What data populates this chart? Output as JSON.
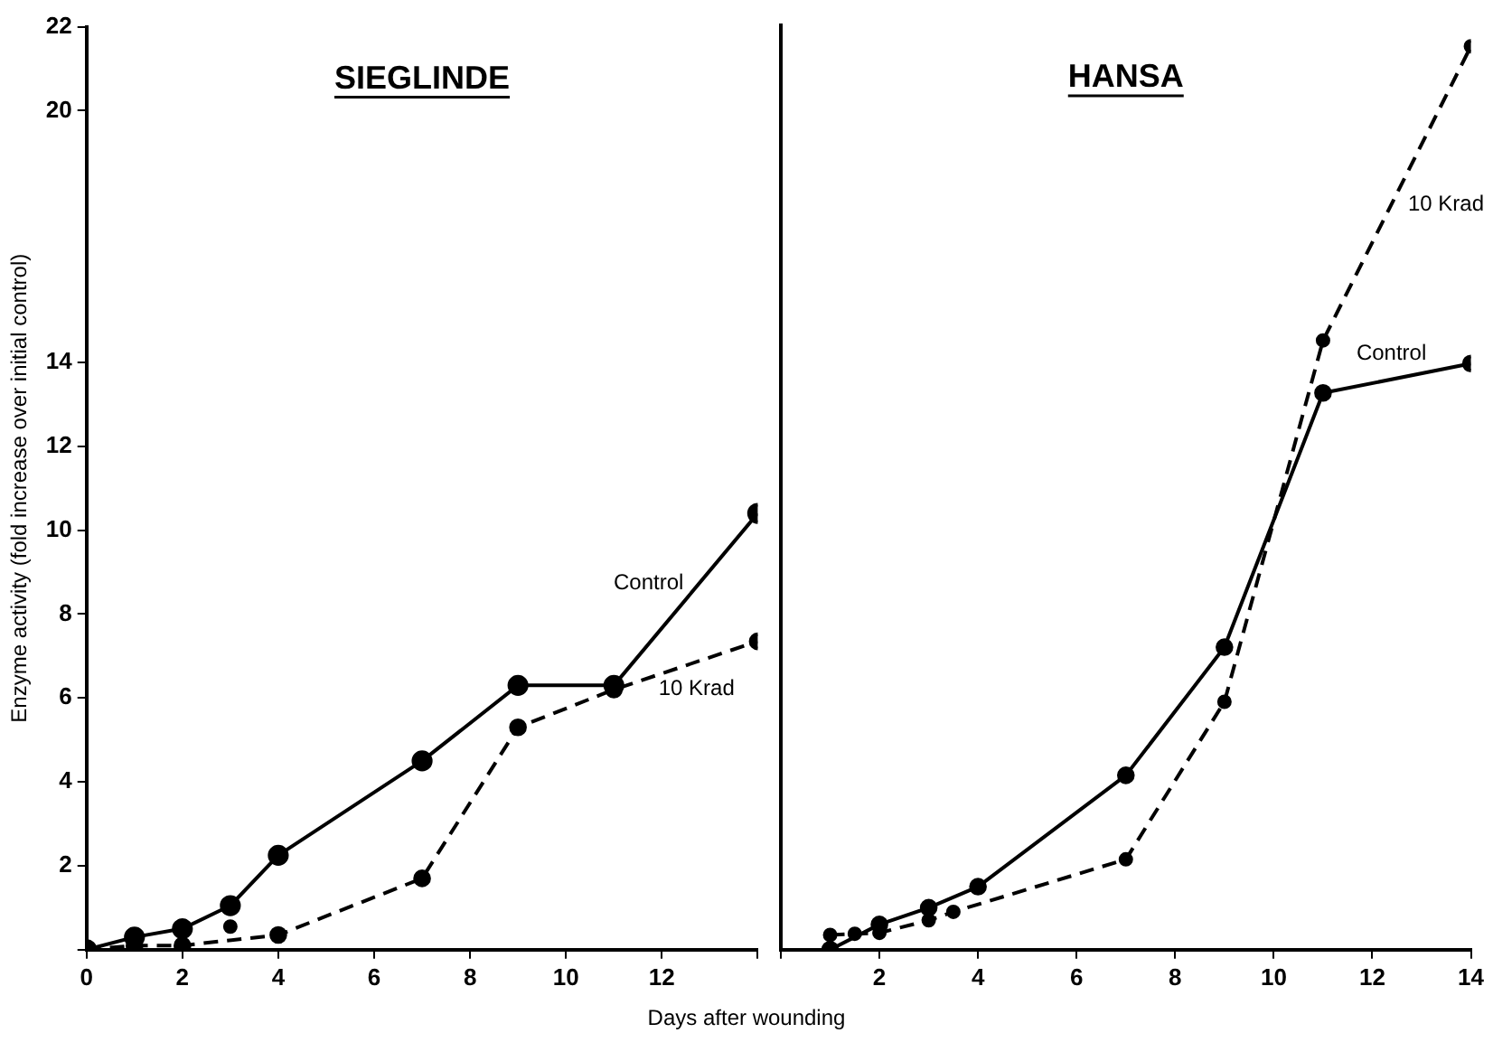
{
  "chart_data": [
    {
      "type": "line",
      "title": "SIEGLINDE",
      "xlabel": "Days after wounding",
      "ylabel": "Enzyme activity (fold increase over initial control)",
      "xlim": [
        0,
        14
      ],
      "xticks": [
        0,
        2,
        4,
        6,
        8,
        10,
        12,
        {
          "value": 14,
          "label": null
        }
      ],
      "ylim": [
        0,
        22
      ],
      "yticks": [
        {
          "value": 0,
          "label": null
        },
        2,
        4,
        6,
        8,
        10,
        12,
        14,
        20,
        22
      ],
      "grid": false,
      "legend": false,
      "marker": "circle",
      "series": [
        {
          "name": "Control",
          "color": "#000000",
          "line_style": "solid",
          "x": [
            0,
            1,
            2,
            3,
            4,
            7,
            9,
            11,
            14
          ],
          "values": [
            0,
            0.3,
            0.5,
            1.05,
            2.25,
            4.5,
            6.3,
            6.3,
            10.4
          ]
        },
        {
          "name": "10 Krad",
          "color": "#000000",
          "line_style": "dashed",
          "x": [
            0,
            1,
            2,
            4,
            7,
            9,
            11,
            14
          ],
          "values": [
            0,
            0.1,
            0.1,
            0.35,
            1.7,
            5.3,
            6.2,
            7.35
          ]
        },
        {
          "type": "scatter",
          "color": "#000000",
          "x": [
            3
          ],
          "values": [
            0.55
          ]
        }
      ]
    },
    {
      "type": "line",
      "title": "HANSA",
      "xlim": [
        0,
        14
      ],
      "xticks": [
        {
          "value": 0,
          "label": null
        },
        2,
        4,
        6,
        8,
        10,
        12,
        14
      ],
      "ylim": [
        0,
        22
      ],
      "tick_labels": "x",
      "grid": false,
      "legend": false,
      "marker": "circle",
      "series": [
        {
          "name": "Control",
          "color": "#000000",
          "line_style": "solid",
          "x": [
            1,
            2,
            3,
            4,
            7,
            9,
            11,
            14
          ],
          "values": [
            0,
            0.6,
            1.0,
            1.5,
            4.15,
            7.2,
            13.25,
            13.95
          ]
        },
        {
          "name": "10 Krad",
          "color": "#000000",
          "line_style": "dashed",
          "x": [
            1,
            1.5,
            2,
            3,
            3.5,
            7,
            9,
            11,
            14
          ],
          "values": [
            0.35,
            0.38,
            0.4,
            0.7,
            0.9,
            2.15,
            5.9,
            14.5,
            21.5
          ]
        }
      ]
    }
  ]
}
